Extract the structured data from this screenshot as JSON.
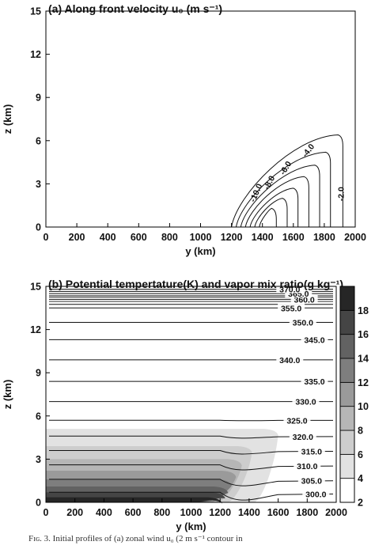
{
  "chart_data": [
    {
      "type": "contour",
      "title": "(a) Along front velocity u₀ (m s⁻¹)",
      "xlabel": "y (km)",
      "ylabel": "z (km)",
      "xlim": [
        0,
        2000
      ],
      "ylim": [
        0,
        15
      ],
      "xticks": [
        "0",
        "200",
        "400",
        "600",
        "800",
        "1000",
        "1200",
        "1400",
        "1600",
        "1800",
        "2000"
      ],
      "yticks": [
        "0",
        "3",
        "6",
        "9",
        "12",
        "15"
      ],
      "contour_labels": [
        "-2.0",
        "-4.0",
        "-6.0",
        "-8.0",
        "-10.0"
      ],
      "contours": [
        {
          "level": -2.0,
          "y_front_base": 1200,
          "y_east": 1920,
          "z_top": 6.4
        },
        {
          "level": -4.0,
          "y_front_base": 1230,
          "y_east": 1840,
          "z_top": 5.2
        },
        {
          "level": -6.0,
          "y_front_base": 1260,
          "y_east": 1770,
          "z_top": 4.3
        },
        {
          "level": -8.0,
          "y_front_base": 1290,
          "y_east": 1700,
          "z_top": 3.5
        },
        {
          "level": -10.0,
          "y_front_base": 1320,
          "y_east": 1630,
          "z_top": 2.7
        },
        {
          "level": -12.0,
          "y_front_base": 1350,
          "y_east": 1560,
          "z_top": 2.0
        },
        {
          "level": -14.0,
          "y_front_base": 1380,
          "y_east": 1490,
          "z_top": 1.3
        }
      ],
      "grid": false
    },
    {
      "type": "contour",
      "title": "(b) Potential tempertature(K) and vapor mix ratio(g kg⁻¹)",
      "xlabel": "y (km)",
      "ylabel": "z (km)",
      "xlim": [
        0,
        2000
      ],
      "ylim": [
        0,
        15
      ],
      "xticks": [
        "0",
        "200",
        "400",
        "600",
        "800",
        "1000",
        "1200",
        "1400",
        "1600",
        "1800",
        "2000"
      ],
      "yticks": [
        "0",
        "3",
        "6",
        "9",
        "12",
        "15"
      ],
      "theta_contours": [
        {
          "level": "300.0",
          "z": 0.7,
          "labeled": true
        },
        {
          "level": "305.0",
          "z": 1.6,
          "labeled": true
        },
        {
          "level": "310.0",
          "z": 2.6,
          "labeled": true
        },
        {
          "level": "315.0",
          "z": 3.6,
          "labeled": true
        },
        {
          "level": "320.0",
          "z": 4.6,
          "labeled": true
        },
        {
          "level": "325.0",
          "z": 5.7,
          "labeled": true
        },
        {
          "level": "330.0",
          "z": 7.0,
          "labeled": true
        },
        {
          "level": "335.0",
          "z": 8.4,
          "labeled": true
        },
        {
          "level": "340.0",
          "z": 9.9,
          "labeled": true
        },
        {
          "level": "345.0",
          "z": 11.3,
          "labeled": true
        },
        {
          "level": "350.0",
          "z": 12.5,
          "labeled": true
        },
        {
          "level": "355.0",
          "z": 13.5,
          "labeled": true
        },
        {
          "level": "360.0",
          "z": 14.1,
          "labeled": true
        },
        {
          "level": "365.0",
          "z": 14.5,
          "labeled": true
        },
        {
          "level": "370.0",
          "z": 14.8,
          "labeled": true
        }
      ],
      "extra_theta_lines_z": [
        13.75,
        13.95,
        14.25,
        14.35,
        14.65
      ],
      "vapor_bands": [
        {
          "range": "2-4",
          "z_top": 5.1,
          "y_east": 1600,
          "color": "#e2e2e2"
        },
        {
          "range": "4-6",
          "z_top": 3.9,
          "y_east": 1420,
          "color": "#cdcdcd"
        },
        {
          "range": "6-8",
          "z_top": 3.0,
          "y_east": 1350,
          "color": "#b6b6b6"
        },
        {
          "range": "8-10",
          "z_top": 2.2,
          "y_east": 1310,
          "color": "#9a9a9a"
        },
        {
          "range": "10-12",
          "z_top": 1.6,
          "y_east": 1280,
          "color": "#7e7e7e"
        },
        {
          "range": "12-14",
          "z_top": 1.1,
          "y_east": 1255,
          "color": "#626262"
        },
        {
          "range": "14-16",
          "z_top": 0.7,
          "y_east": 1235,
          "color": "#454545"
        },
        {
          "range": "16-18",
          "z_top": 0.35,
          "y_east": 1215,
          "color": "#262626"
        }
      ],
      "colorbar": {
        "ticks": [
          "2",
          "4",
          "6",
          "8",
          "10",
          "12",
          "14",
          "16",
          "18"
        ],
        "shown_labels": [
          "2",
          "4",
          "6",
          "8",
          "10",
          "12",
          "14",
          "16",
          "18"
        ],
        "colors": [
          "#ffffff",
          "#e2e2e2",
          "#cdcdcd",
          "#b6b6b6",
          "#9a9a9a",
          "#7e7e7e",
          "#626262",
          "#454545",
          "#262626"
        ]
      },
      "grid": false
    }
  ],
  "caption": "Fɪɢ. 3. Initial profiles of (a) zonal wind u₀ (2 m s⁻¹ contour in"
}
